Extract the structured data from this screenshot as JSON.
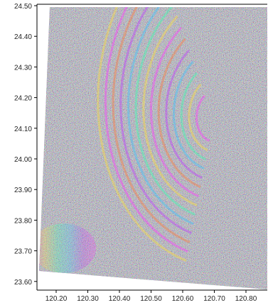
{
  "map": {
    "type": "insar-interferogram",
    "x_range": [
      120.13,
      120.9
    ],
    "y_range": [
      23.58,
      24.5
    ],
    "x_ticks": [
      "120.20",
      "120.30",
      "120.40",
      "120.50",
      "120.60",
      "120.70",
      "120.80"
    ],
    "y_ticks": [
      "24.50",
      "24.40",
      "24.30",
      "24.20",
      "24.10",
      "24.00",
      "23.90",
      "23.80",
      "23.70",
      "23.60"
    ],
    "grid": false,
    "background_color": "#ffffff",
    "frame_color": "#000000",
    "noise_base_color": "#9a9aa4"
  }
}
